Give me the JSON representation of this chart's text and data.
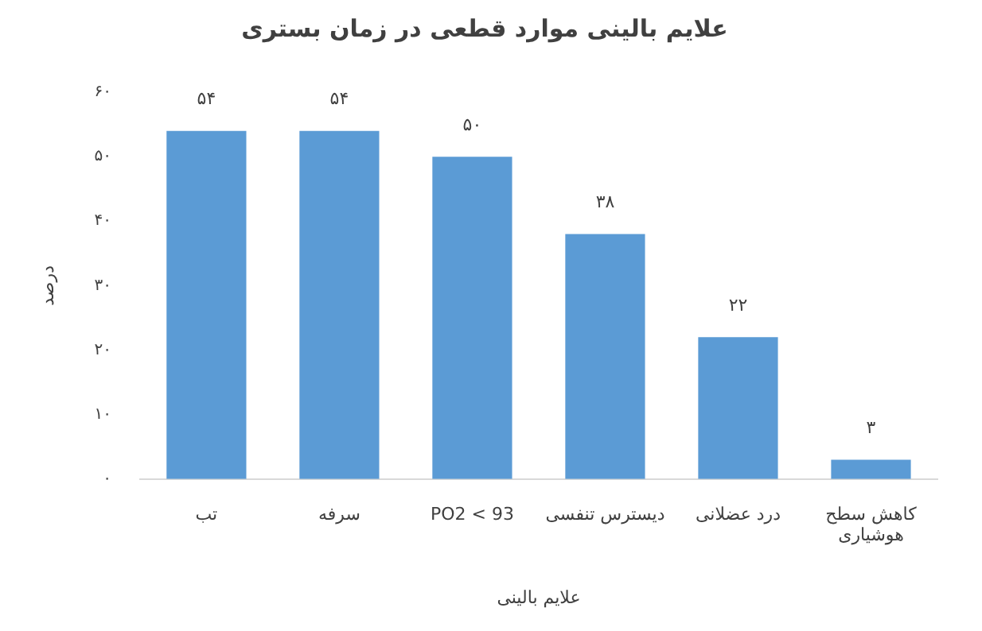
{
  "chart_data": {
    "type": "bar",
    "title": "علایم بالینی موارد قطعی در زمان بستری",
    "xlabel": "علایم بالینی",
    "ylabel": "درصد",
    "categories": [
      "تب",
      "سرفه",
      "PO2 < 93",
      "دیسترس تنفسی",
      "درد عضلانی",
      "کاهش سطح هوشیاری"
    ],
    "values": [
      54,
      54,
      50,
      38,
      22,
      3
    ],
    "color": "#5b9bd5",
    "value_labels": [
      "۵۴",
      "۵۴",
      "۵۰",
      "۳۸",
      "۲۲",
      "۳"
    ],
    "ylim": [
      0,
      60
    ],
    "yticks": [
      {
        "value": 0,
        "label": "۰"
      },
      {
        "value": 10,
        "label": "۱۰"
      },
      {
        "value": 20,
        "label": "۲۰"
      },
      {
        "value": 30,
        "label": "۳۰"
      },
      {
        "value": 40,
        "label": "۴۰"
      },
      {
        "value": 50,
        "label": "۵۰"
      },
      {
        "value": 60,
        "label": "۶۰"
      }
    ]
  }
}
